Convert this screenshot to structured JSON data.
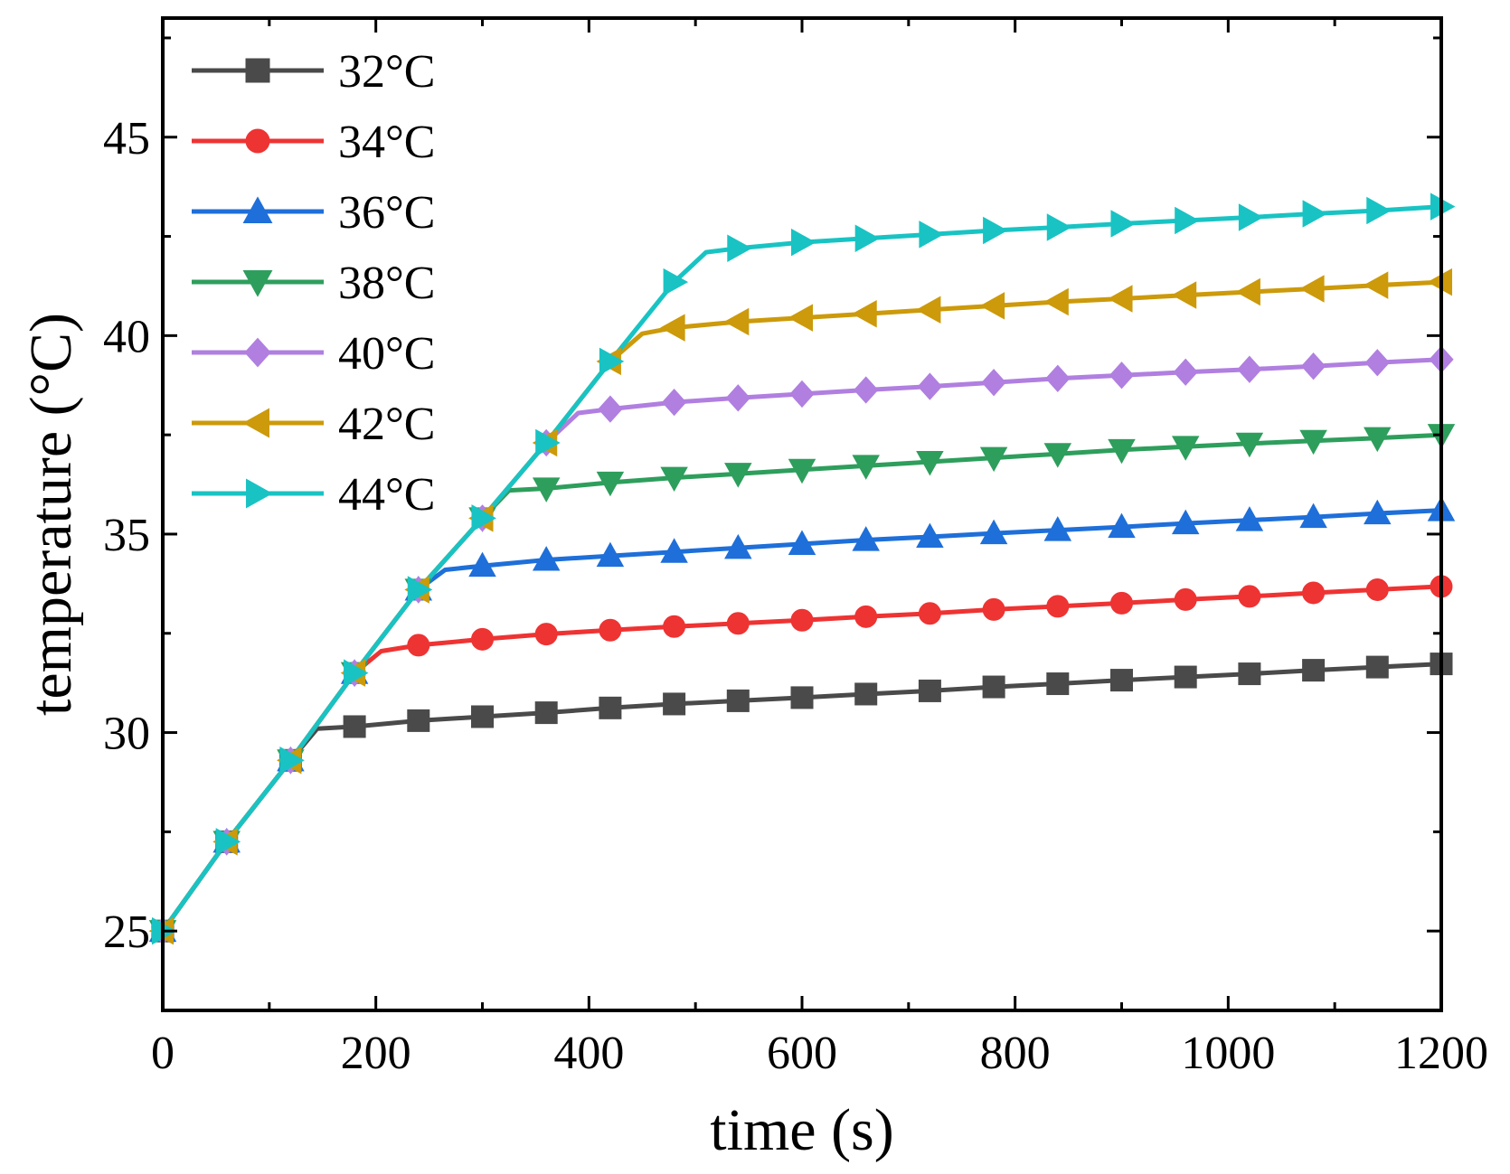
{
  "chart_data": {
    "type": "line",
    "title": "",
    "xlabel": "time (s)",
    "ylabel": "temperature (°C)",
    "xlim": [
      0,
      1200
    ],
    "ylim": [
      23,
      48
    ],
    "xticks": [
      0,
      200,
      400,
      600,
      800,
      1000,
      1200
    ],
    "xtick_labels": [
      "0",
      "200",
      "400",
      "600",
      "800",
      "1000",
      "1200"
    ],
    "yticks": [
      25,
      30,
      35,
      40,
      45
    ],
    "ytick_labels": [
      "25",
      "30",
      "35",
      "40",
      "45"
    ],
    "legend_position": "top-left",
    "grid": false,
    "x": [
      0,
      60,
      120,
      180,
      240,
      300,
      360,
      420,
      480,
      540,
      600,
      660,
      720,
      780,
      840,
      900,
      960,
      1020,
      1080,
      1140,
      1200
    ],
    "series": [
      {
        "name": "32°C",
        "color": "#4a4a4a",
        "marker": "square",
        "values": [
          25.0,
          27.25,
          29.3,
          30.15,
          30.3,
          30.4,
          30.5,
          30.62,
          30.72,
          30.8,
          30.88,
          30.97,
          31.05,
          31.15,
          31.23,
          31.32,
          31.4,
          31.48,
          31.57,
          31.65,
          31.73
        ],
        "turn": [
          145,
          30.1
        ]
      },
      {
        "name": "34°C",
        "color": "#ee3333",
        "marker": "circle",
        "values": [
          25.0,
          27.25,
          29.3,
          31.5,
          32.2,
          32.35,
          32.48,
          32.58,
          32.67,
          32.75,
          32.83,
          32.92,
          33.0,
          33.1,
          33.18,
          33.26,
          33.35,
          33.43,
          33.52,
          33.6,
          33.68
        ],
        "turn": [
          205,
          32.05
        ]
      },
      {
        "name": "36°C",
        "color": "#1e6fd9",
        "marker": "triangle-up",
        "values": [
          25.0,
          27.25,
          29.3,
          31.5,
          33.6,
          34.2,
          34.35,
          34.45,
          34.55,
          34.65,
          34.75,
          34.85,
          34.93,
          35.02,
          35.1,
          35.18,
          35.27,
          35.35,
          35.43,
          35.52,
          35.6
        ],
        "turn": [
          265,
          34.1
        ]
      },
      {
        "name": "38°C",
        "color": "#2e9e5c",
        "marker": "triangle-down",
        "values": [
          25.0,
          27.25,
          29.3,
          31.5,
          33.6,
          35.4,
          36.15,
          36.3,
          36.42,
          36.52,
          36.62,
          36.72,
          36.82,
          36.92,
          37.02,
          37.12,
          37.2,
          37.28,
          37.35,
          37.42,
          37.5
        ],
        "turn": [
          325,
          36.1
        ]
      },
      {
        "name": "40°C",
        "color": "#b07fe0",
        "marker": "diamond",
        "values": [
          25.0,
          27.25,
          29.3,
          31.5,
          33.6,
          35.4,
          37.3,
          38.15,
          38.32,
          38.43,
          38.53,
          38.63,
          38.72,
          38.82,
          38.92,
          39.0,
          39.08,
          39.15,
          39.23,
          39.32,
          39.4
        ],
        "turn": [
          390,
          38.05
        ]
      },
      {
        "name": "42°C",
        "color": "#cc9a0a",
        "marker": "triangle-left",
        "values": [
          25.0,
          27.25,
          29.3,
          31.5,
          33.6,
          35.4,
          37.3,
          39.35,
          40.2,
          40.35,
          40.45,
          40.55,
          40.65,
          40.75,
          40.85,
          40.93,
          41.02,
          41.1,
          41.18,
          41.27,
          41.35
        ],
        "turn": [
          450,
          40.05
        ]
      },
      {
        "name": "44°C",
        "color": "#19c3c3",
        "marker": "triangle-right",
        "values": [
          25.0,
          27.25,
          29.3,
          31.5,
          33.6,
          35.4,
          37.3,
          39.35,
          41.35,
          42.2,
          42.35,
          42.45,
          42.55,
          42.65,
          42.73,
          42.82,
          42.9,
          42.98,
          43.07,
          43.15,
          43.25
        ],
        "turn": [
          510,
          42.1
        ]
      }
    ]
  }
}
